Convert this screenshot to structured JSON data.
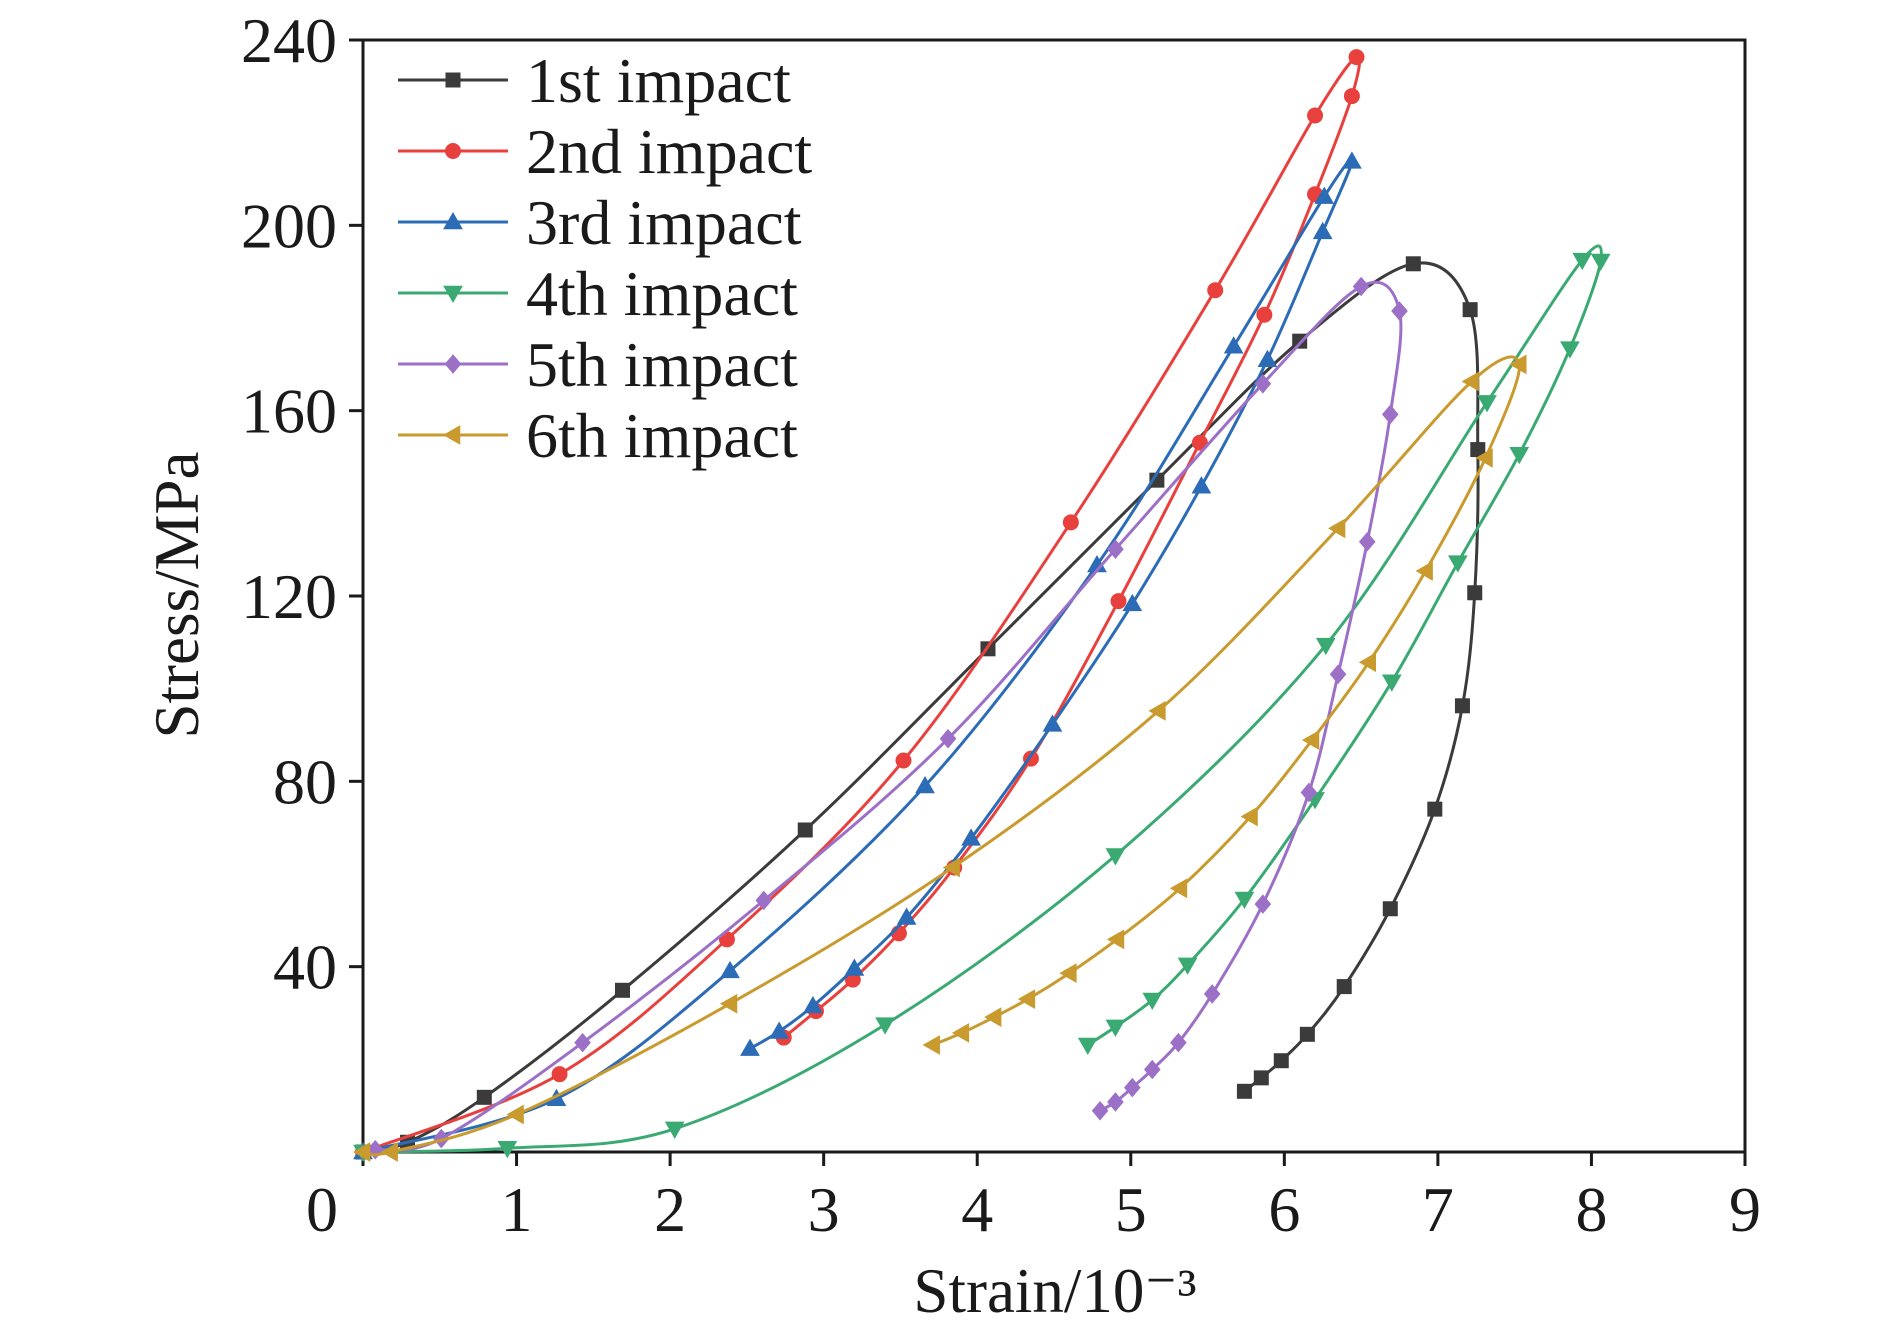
{
  "chart_data": {
    "type": "line",
    "xlabel": "Strain/10⁻³",
    "ylabel": "Stress/MPa",
    "xlim": [
      0,
      9
    ],
    "ylim": [
      0,
      240
    ],
    "xticks": [
      0,
      1,
      2,
      3,
      4,
      5,
      6,
      7,
      8,
      9
    ],
    "yticks": [
      40,
      80,
      120,
      160,
      200,
      240
    ],
    "grid": false,
    "legend": "top-left",
    "series": [
      {
        "name": "1st impact",
        "color": "#3b3b3b",
        "marker": "square",
        "points": [
          [
            0,
            0
          ],
          [
            0.29,
            2.1
          ],
          [
            0.79,
            11.8
          ],
          [
            1.69,
            34.9
          ],
          [
            2.88,
            69.5
          ],
          [
            4.07,
            108.6
          ],
          [
            5.17,
            145.0
          ],
          [
            6.1,
            175.0
          ],
          [
            6.84,
            191.7
          ],
          [
            7.21,
            181.8
          ],
          [
            7.26,
            151.6
          ],
          [
            7.24,
            120.7
          ],
          [
            7.16,
            96.3
          ],
          [
            6.98,
            74.0
          ],
          [
            6.69,
            52.5
          ],
          [
            6.39,
            35.7
          ],
          [
            6.15,
            25.4
          ],
          [
            5.98,
            19.7
          ],
          [
            5.85,
            16.0
          ],
          [
            5.74,
            13.1
          ]
        ]
      },
      {
        "name": "2nd impact",
        "color": "#e8413d",
        "marker": "circle",
        "points": [
          [
            0,
            0
          ],
          [
            1.28,
            16.8
          ],
          [
            2.37,
            45.9
          ],
          [
            3.52,
            84.5
          ],
          [
            4.61,
            135.9
          ],
          [
            5.55,
            186.0
          ],
          [
            6.2,
            223.7
          ],
          [
            6.47,
            236.3
          ],
          [
            6.44,
            227.9
          ],
          [
            6.2,
            206.7
          ],
          [
            5.87,
            180.7
          ],
          [
            5.45,
            153.1
          ],
          [
            4.92,
            118.9
          ],
          [
            4.35,
            84.9
          ],
          [
            3.85,
            61.4
          ],
          [
            3.49,
            47.2
          ],
          [
            3.19,
            37.2
          ],
          [
            2.95,
            30.4
          ],
          [
            2.74,
            24.7
          ]
        ]
      },
      {
        "name": "3rd impact",
        "color": "#2c6bb6",
        "marker": "triangle-up",
        "points": [
          [
            0,
            0
          ],
          [
            1.26,
            11.5
          ],
          [
            2.39,
            39.1
          ],
          [
            3.66,
            79.0
          ],
          [
            4.78,
            126.7
          ],
          [
            5.67,
            173.9
          ],
          [
            6.26,
            206.2
          ],
          [
            6.44,
            213.8
          ],
          [
            6.25,
            198.6
          ],
          [
            5.89,
            171.0
          ],
          [
            5.46,
            143.7
          ],
          [
            5.01,
            118.3
          ],
          [
            4.49,
            92.3
          ],
          [
            3.96,
            67.7
          ],
          [
            3.54,
            50.6
          ],
          [
            3.2,
            39.6
          ],
          [
            2.93,
            31.5
          ],
          [
            2.71,
            26.0
          ],
          [
            2.52,
            22.3
          ]
        ]
      },
      {
        "name": "4th impact",
        "color": "#3aaa72",
        "marker": "triangle-down",
        "points": [
          [
            0,
            0
          ],
          [
            0.94,
            0.8
          ],
          [
            2.03,
            5.0
          ],
          [
            3.4,
            27.5
          ],
          [
            4.9,
            64.0
          ],
          [
            6.27,
            109.4
          ],
          [
            7.32,
            161.8
          ],
          [
            7.94,
            192.5
          ],
          [
            8.06,
            192.3
          ],
          [
            7.86,
            173.4
          ],
          [
            7.53,
            150.6
          ],
          [
            7.13,
            127.2
          ],
          [
            6.7,
            101.5
          ],
          [
            6.2,
            76.1
          ],
          [
            5.74,
            54.6
          ],
          [
            5.37,
            40.4
          ],
          [
            5.14,
            32.8
          ],
          [
            4.9,
            27.0
          ],
          [
            4.72,
            23.1
          ]
        ]
      },
      {
        "name": "5th impact",
        "color": "#9c70c6",
        "marker": "diamond",
        "points": [
          [
            0.08,
            0.5
          ],
          [
            0.51,
            2.9
          ],
          [
            1.43,
            23.6
          ],
          [
            2.61,
            54.3
          ],
          [
            3.81,
            89.2
          ],
          [
            4.9,
            130.1
          ],
          [
            5.86,
            165.8
          ],
          [
            6.5,
            186.8
          ],
          [
            6.75,
            181.5
          ],
          [
            6.69,
            159.2
          ],
          [
            6.54,
            131.7
          ],
          [
            6.35,
            103.1
          ],
          [
            6.16,
            77.6
          ],
          [
            5.86,
            53.5
          ],
          [
            5.53,
            34.1
          ],
          [
            5.31,
            23.6
          ],
          [
            5.14,
            17.8
          ],
          [
            5.01,
            13.9
          ],
          [
            4.9,
            10.8
          ],
          [
            4.8,
            8.9
          ]
        ]
      },
      {
        "name": "6th impact",
        "color": "#c99a2e",
        "marker": "triangle-left",
        "points": [
          [
            0,
            0
          ],
          [
            0.18,
            0.0
          ],
          [
            1.0,
            8.1
          ],
          [
            2.39,
            32.0
          ],
          [
            3.84,
            61.4
          ],
          [
            5.18,
            95.2
          ],
          [
            6.35,
            134.6
          ],
          [
            7.22,
            166.3
          ],
          [
            7.53,
            170.0
          ],
          [
            7.31,
            149.8
          ],
          [
            6.92,
            125.4
          ],
          [
            6.55,
            105.7
          ],
          [
            6.18,
            88.9
          ],
          [
            5.78,
            72.4
          ],
          [
            5.32,
            56.9
          ],
          [
            4.91,
            45.9
          ],
          [
            4.6,
            38.6
          ],
          [
            4.33,
            33.0
          ],
          [
            4.11,
            29.1
          ],
          [
            3.9,
            25.7
          ],
          [
            3.71,
            23.1
          ]
        ]
      }
    ]
  }
}
